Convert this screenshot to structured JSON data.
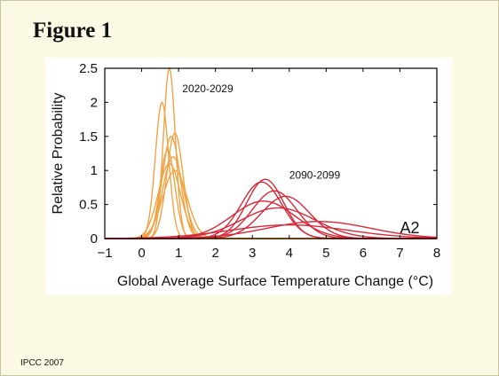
{
  "slide": {
    "title": "Figure 1",
    "footer": "IPCC 2007"
  },
  "chart_data": {
    "type": "line",
    "title": "",
    "xlabel": "Global Average Surface Temperature Change (°C)",
    "ylabel": "Relative Probability",
    "xlim": [
      -1,
      8
    ],
    "ylim": [
      0,
      2.5
    ],
    "xticks": [
      -1,
      0,
      1,
      2,
      3,
      4,
      5,
      6,
      7,
      8
    ],
    "yticks": [
      0,
      0.5,
      1,
      1.5,
      2,
      2.5
    ],
    "ytick_labels": [
      "0",
      "0.5",
      "1",
      "1.5",
      "2",
      "2.5"
    ],
    "grid": false,
    "annotations": [
      {
        "text": "2020-2029",
        "x": 1.1,
        "y": 2.15
      },
      {
        "text": "2090-2099",
        "x": 4.0,
        "y": 0.88
      },
      {
        "text": "A2",
        "x": 7.0,
        "y": 0.08
      }
    ],
    "groups": [
      {
        "period": "2020-2029",
        "color": "#f0a445",
        "curves": [
          {
            "mean": 0.75,
            "sd": 0.16,
            "peak": 2.5
          },
          {
            "mean": 0.55,
            "sd": 0.18,
            "peak": 2.0
          },
          {
            "mean": 0.9,
            "sd": 0.22,
            "peak": 1.55
          },
          {
            "mean": 0.8,
            "sd": 0.24,
            "peak": 1.5
          },
          {
            "mean": 0.7,
            "sd": 0.2,
            "peak": 1.3
          },
          {
            "mean": 0.85,
            "sd": 0.28,
            "peak": 1.2
          },
          {
            "mean": 0.75,
            "sd": 0.3,
            "peak": 1.1
          },
          {
            "mean": 0.9,
            "sd": 0.33,
            "peak": 1.0
          }
        ]
      },
      {
        "period": "2090-2099",
        "color": "#d42a3a",
        "curves": [
          {
            "mean": 3.35,
            "sd": 0.5,
            "peak": 0.87
          },
          {
            "mean": 3.25,
            "sd": 0.55,
            "peak": 0.83
          },
          {
            "mean": 3.6,
            "sd": 0.6,
            "peak": 0.7
          },
          {
            "mean": 3.9,
            "sd": 0.65,
            "peak": 0.62
          },
          {
            "mean": 3.3,
            "sd": 0.85,
            "peak": 0.55
          },
          {
            "mean": 3.7,
            "sd": 1.0,
            "peak": 0.45
          },
          {
            "mean": 4.8,
            "sd": 1.4,
            "peak": 0.25
          },
          {
            "mean": 4.0,
            "sd": 1.6,
            "peak": 0.2
          }
        ]
      }
    ]
  }
}
